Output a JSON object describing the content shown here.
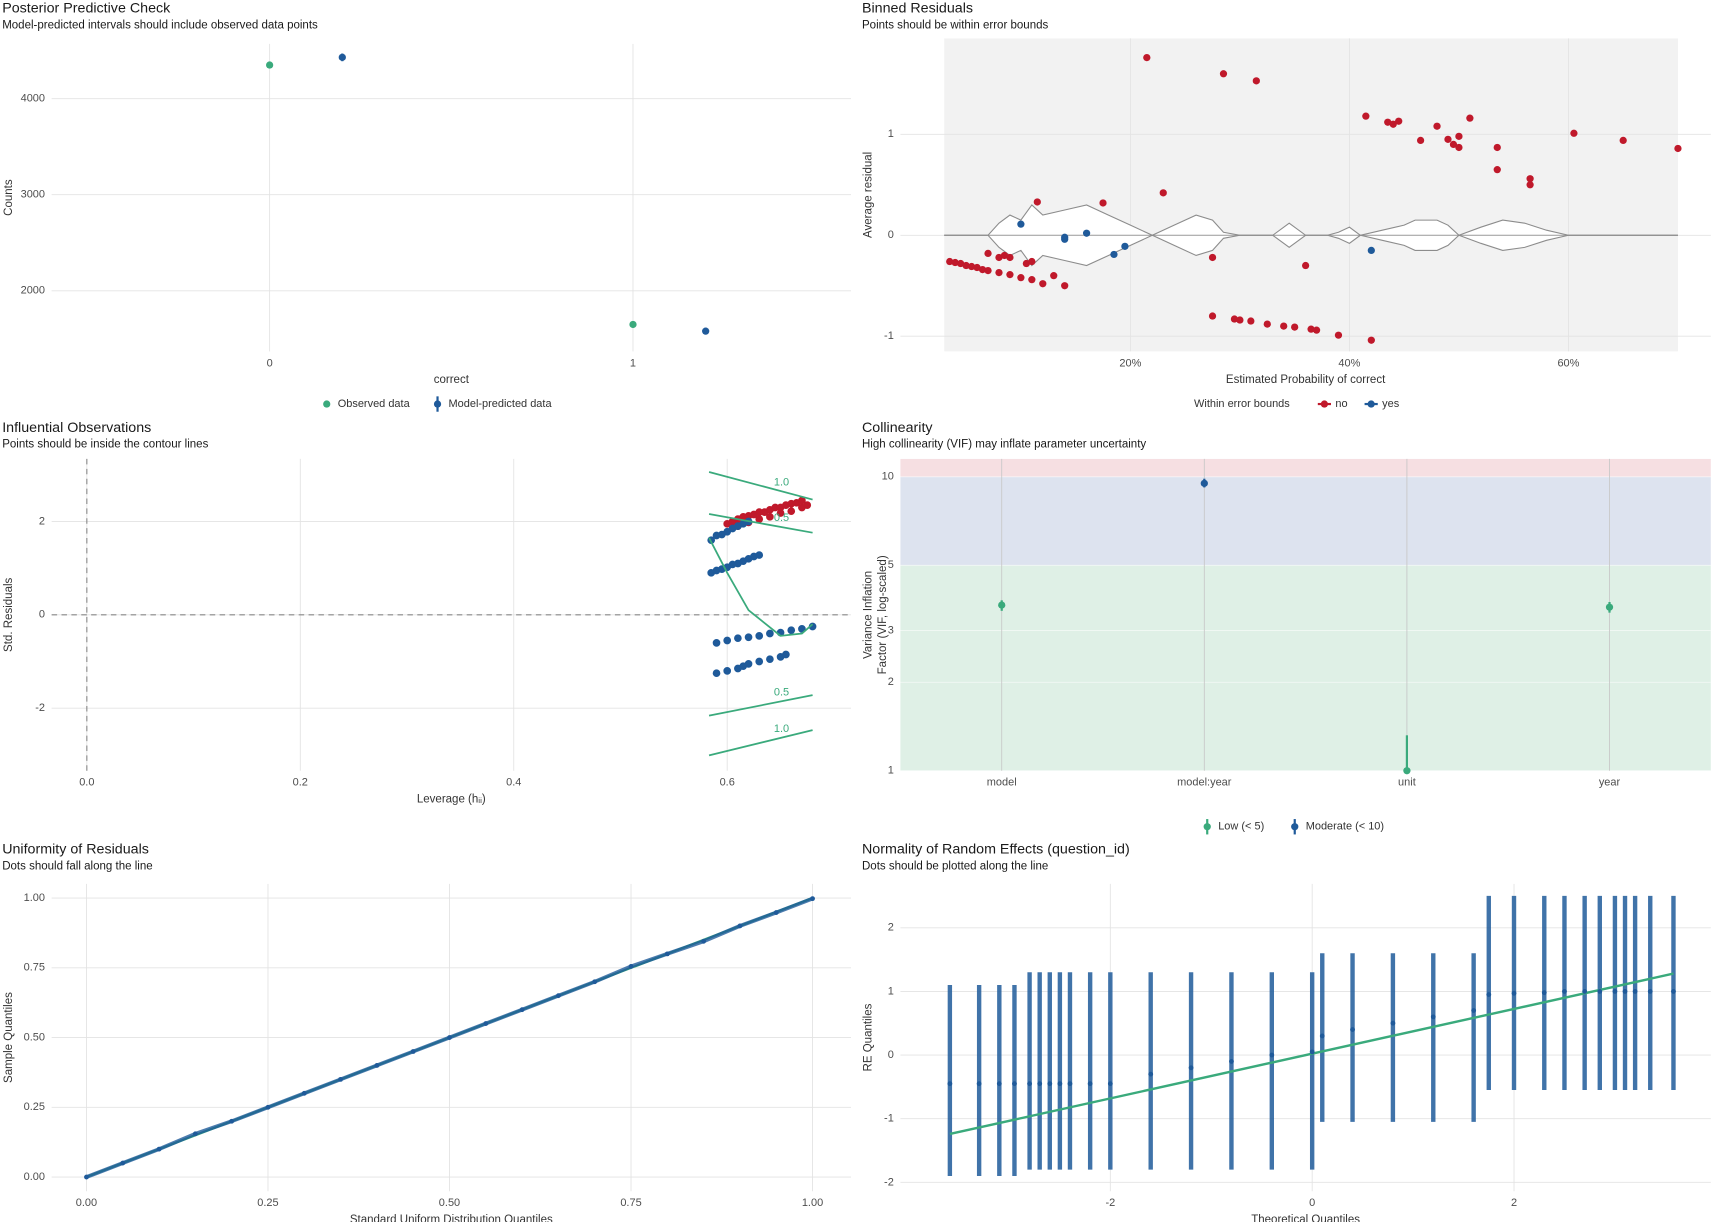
{
  "chart_data": [
    {
      "type": "pointrange",
      "title": "Posterior Predictive Check",
      "subtitle": "Model-predicted intervals should include observed data points",
      "x_label": "correct",
      "y_label": "Counts",
      "xlim": [
        -0.6,
        1.6
      ],
      "ylim": [
        1370,
        4570
      ],
      "xticks": [
        0,
        1
      ],
      "yticks": [
        2000,
        3000,
        4000
      ],
      "grid": true,
      "series": [
        {
          "name": "Observed data",
          "color": "#3aaa7c",
          "x": [
            0,
            1
          ],
          "values": [
            4350,
            1650
          ]
        },
        {
          "name": "Model-predicted data",
          "color": "#1f5a9a",
          "x": [
            0.2,
            1.2
          ],
          "values": [
            4430,
            1580
          ],
          "lower": [
            4390,
            1545
          ],
          "upper": [
            4470,
            1615
          ]
        }
      ]
    },
    {
      "type": "binned",
      "title": "Binned Residuals",
      "subtitle": "Points should be within error bounds",
      "x_label": "Estimated Probability of correct",
      "y_label": "Average residual",
      "legend_title": "Within error bounds",
      "xlim": [
        -1,
        73
      ],
      "ylim": [
        -1.15,
        1.95
      ],
      "xticks": [
        {
          "value": 20,
          "label": "20%"
        },
        {
          "value": 40,
          "label": "40%"
        },
        {
          "value": 60,
          "label": "60%"
        }
      ],
      "yticks": [
        -1,
        0,
        1
      ],
      "grid": true,
      "bounds": {
        "x": [
          3,
          6,
          7,
          8,
          9,
          10,
          11,
          12,
          14,
          16,
          18,
          20,
          22,
          24,
          26,
          27.5,
          28.5,
          30,
          33,
          34.5,
          36,
          38,
          39,
          40,
          41,
          43,
          45,
          46,
          48,
          49,
          50,
          52,
          54,
          56,
          58,
          60,
          70
        ],
        "upper": [
          0,
          0,
          0,
          0.12,
          0.2,
          0.15,
          0.3,
          0.2,
          0.25,
          0.3,
          0.2,
          0.1,
          0,
          0.1,
          0.2,
          0.15,
          0.03,
          0,
          0,
          0.12,
          0,
          0,
          0.03,
          0.08,
          0,
          0.05,
          0.1,
          0.15,
          0.15,
          0.1,
          0,
          0.08,
          0.15,
          0.12,
          0.05,
          0,
          0
        ],
        "lower": [
          0,
          0,
          0,
          -0.12,
          -0.2,
          -0.15,
          -0.3,
          -0.2,
          -0.25,
          -0.3,
          -0.2,
          -0.1,
          0,
          -0.1,
          -0.2,
          -0.15,
          -0.03,
          0,
          0,
          -0.12,
          0,
          0,
          -0.03,
          -0.08,
          0,
          -0.05,
          -0.1,
          -0.15,
          -0.15,
          -0.1,
          0,
          -0.08,
          -0.15,
          -0.12,
          -0.05,
          0,
          0
        ]
      },
      "series": [
        {
          "name": "no",
          "color": "#c0192b",
          "x": [
            3.5,
            4,
            4.5,
            5,
            5.5,
            6,
            6.5,
            7,
            8,
            9,
            10,
            11,
            12,
            13,
            14,
            7,
            8,
            8.5,
            9,
            10.5,
            11,
            11.5,
            17.5,
            21.5,
            23,
            27.5,
            28.5,
            31.5,
            36,
            27.5,
            29.5,
            30,
            31,
            32.5,
            34,
            35,
            36.5,
            37,
            39,
            42,
            41.5,
            43.5,
            44,
            44.5,
            46.5,
            48,
            49,
            49.5,
            50,
            50,
            51,
            53.5,
            53.5,
            56.5,
            56.5,
            60.5,
            65,
            70
          ],
          "values": [
            -0.26,
            -0.27,
            -0.28,
            -0.3,
            -0.31,
            -0.32,
            -0.34,
            -0.35,
            -0.37,
            -0.39,
            -0.42,
            -0.44,
            -0.48,
            -0.4,
            -0.5,
            -0.18,
            -0.22,
            -0.2,
            -0.22,
            -0.28,
            -0.26,
            0.33,
            0.32,
            1.76,
            0.42,
            -0.22,
            1.6,
            1.53,
            -0.3,
            -0.8,
            -0.83,
            -0.84,
            -0.85,
            -0.88,
            -0.9,
            -0.91,
            -0.93,
            -0.94,
            -0.99,
            -1.04,
            1.18,
            1.12,
            1.1,
            1.13,
            0.94,
            1.08,
            0.95,
            0.9,
            0.98,
            0.87,
            1.16,
            0.87,
            0.65,
            0.56,
            0.5,
            1.01,
            0.94,
            0.86
          ]
        },
        {
          "name": "yes",
          "color": "#1f5a9a",
          "x": [
            10,
            14,
            14,
            16,
            18.5,
            19.5,
            42
          ],
          "values": [
            0.11,
            -0.02,
            -0.04,
            0.02,
            -0.19,
            -0.11,
            -0.15
          ]
        }
      ]
    },
    {
      "type": "leverage",
      "title": "Influential Observations",
      "subtitle": "Points should be inside the contour lines",
      "x_label": "Leverage (hᵢᵢ)",
      "y_label": "Std. Residuals",
      "xlim": [
        -0.033,
        0.716
      ],
      "ylim": [
        -3.34,
        3.34
      ],
      "xticks": [
        {
          "value": 0,
          "label": "0.0"
        },
        0.2,
        0.4,
        0.6
      ],
      "yticks": [
        -2,
        0,
        2
      ],
      "grid": true,
      "contours": [
        {
          "label": "1.0",
          "x": [
            0.583,
            0.68
          ],
          "y": [
            3.06,
            2.47
          ]
        },
        {
          "label": "0.5",
          "x": [
            0.583,
            0.68
          ],
          "y": [
            2.16,
            1.76
          ]
        },
        {
          "label": "0.5",
          "x": [
            0.583,
            0.68
          ],
          "y": [
            -2.16,
            -1.72
          ]
        },
        {
          "label": "1.0",
          "x": [
            0.583,
            0.68
          ],
          "y": [
            -3.01,
            -2.47
          ]
        }
      ],
      "contour_color": "#3aaa7c",
      "fit_line": {
        "color": "#3aaa7c",
        "x": [
          0.583,
          0.6,
          0.62,
          0.65,
          0.67,
          0.68
        ],
        "y": [
          1.65,
          0.9,
          0.1,
          -0.45,
          -0.4,
          -0.2
        ]
      },
      "series": [
        {
          "color": "#c0192b",
          "x": [
            0.6,
            0.605,
            0.61,
            0.615,
            0.62,
            0.625,
            0.63,
            0.635,
            0.64,
            0.645,
            0.65,
            0.655,
            0.66,
            0.665,
            0.67,
            0.61,
            0.62,
            0.63,
            0.64,
            0.65,
            0.66,
            0.67,
            0.675
          ],
          "values": [
            1.95,
            2.0,
            2.05,
            2.1,
            2.12,
            2.15,
            2.2,
            2.2,
            2.25,
            2.3,
            2.3,
            2.35,
            2.38,
            2.4,
            2.45,
            1.9,
            1.98,
            2.05,
            2.1,
            2.18,
            2.22,
            2.3,
            2.35
          ]
        },
        {
          "color": "#1f5a9a",
          "x": [
            0.585,
            0.59,
            0.595,
            0.6,
            0.605,
            0.61,
            0.615,
            0.62,
            0.585,
            0.59,
            0.595,
            0.6,
            0.605,
            0.61,
            0.615,
            0.62,
            0.625,
            0.63,
            0.59,
            0.6,
            0.61,
            0.62,
            0.63,
            0.64,
            0.65,
            0.66,
            0.67,
            0.68,
            0.59,
            0.6,
            0.61,
            0.615,
            0.62,
            0.63,
            0.64,
            0.65,
            0.655
          ],
          "values": [
            1.6,
            1.7,
            1.72,
            1.78,
            1.85,
            1.9,
            1.95,
            2.0,
            0.9,
            0.95,
            0.98,
            1.02,
            1.08,
            1.1,
            1.15,
            1.2,
            1.25,
            1.28,
            -0.6,
            -0.55,
            -0.5,
            -0.48,
            -0.45,
            -0.4,
            -0.38,
            -0.33,
            -0.3,
            -0.25,
            -1.25,
            -1.2,
            -1.15,
            -1.1,
            -1.05,
            -1.0,
            -0.95,
            -0.9,
            -0.85
          ]
        }
      ]
    },
    {
      "type": "vif",
      "title": "Collinearity",
      "subtitle": "High collinearity (VIF) may inflate parameter uncertainty",
      "y_label": [
        "Variance Inflation",
        "Factor (VIF, log-scaled)"
      ],
      "log_y": true,
      "ylim": [
        1,
        11.5
      ],
      "yticks": [
        1,
        2,
        3,
        5,
        10
      ],
      "grid": true,
      "categories": [
        "model",
        "model:year",
        "unit",
        "year"
      ],
      "bands": [
        {
          "from": 1,
          "to": 5,
          "color": "#dff0e6"
        },
        {
          "from": 5,
          "to": 10,
          "color": "#dde3ef"
        },
        {
          "from": 10,
          "color": "#f6dfe2"
        }
      ],
      "series": [
        {
          "name": "Low (< 5)",
          "color": "#3aaa7c",
          "values": [
            3.66,
            null,
            1.0,
            3.6
          ],
          "lower": [
            3.5,
            null,
            1.0,
            3.45
          ],
          "upper": [
            3.8,
            null,
            1.32,
            3.75
          ]
        },
        {
          "name": "Moderate (< 10)",
          "color": "#1f5a9a",
          "values": [
            null,
            9.5,
            null,
            null
          ],
          "lower": [
            null,
            9.2,
            null,
            null
          ],
          "upper": [
            null,
            9.85,
            null,
            null
          ]
        }
      ]
    },
    {
      "type": "qq",
      "title": "Uniformity of Residuals",
      "subtitle": "Dots should fall along the line",
      "x_label": "Standard Uniform Distribution Quantiles",
      "y_label": "Sample Quantiles",
      "xlim": [
        -0.048,
        1.053
      ],
      "ylim": [
        -0.051,
        1.051
      ],
      "xticks": [
        {
          "value": 0,
          "label": "0.00"
        },
        0.25,
        {
          "value": 0.5,
          "label": "0.50"
        },
        0.75,
        {
          "value": 1,
          "label": "1.00"
        }
      ],
      "yticks": [
        {
          "value": 0,
          "label": "0.00"
        },
        0.25,
        {
          "value": 0.5,
          "label": "0.50"
        },
        0.75,
        {
          "value": 1,
          "label": "1.00"
        }
      ],
      "grid": true,
      "reference_line": {
        "color": "#3aaa7c",
        "x": [
          0,
          1
        ],
        "y": [
          0,
          1
        ]
      },
      "series": [
        {
          "color": "#1f5a9a",
          "x": [
            0,
            0.05,
            0.1,
            0.15,
            0.2,
            0.25,
            0.3,
            0.35,
            0.4,
            0.45,
            0.5,
            0.55,
            0.6,
            0.65,
            0.7,
            0.75,
            0.8,
            0.85,
            0.9,
            0.95,
            1
          ],
          "values": [
            0,
            0.05,
            0.1,
            0.155,
            0.2,
            0.25,
            0.3,
            0.35,
            0.4,
            0.45,
            0.5,
            0.55,
            0.6,
            0.65,
            0.7,
            0.755,
            0.8,
            0.845,
            0.9,
            0.948,
            0.998
          ]
        }
      ]
    },
    {
      "type": "qq",
      "title": "Normality of Random Effects (question_id)",
      "subtitle": "Dots should be plotted along the line",
      "x_label": "Theoretical Quantiles",
      "y_label": "RE Quantiles",
      "xlim": [
        -4.08,
        3.95
      ],
      "ylim": [
        -2.14,
        2.69
      ],
      "xticks": [
        -2,
        0,
        2
      ],
      "yticks": [
        -2,
        -1,
        0,
        1,
        2
      ],
      "grid": true,
      "reference_line": {
        "color": "#3aaa7c",
        "x": [
          -3.59,
          3.58
        ],
        "y": [
          -1.24,
          1.28
        ]
      },
      "series": [
        {
          "color": "#1f5a9a",
          "x": [
            -3.59,
            -3.3,
            -3.1,
            -2.95,
            -2.8,
            -2.7,
            -2.6,
            -2.5,
            -2.4,
            -2.2,
            -2.0,
            -1.6,
            -1.2,
            -0.8,
            -0.4,
            0.0,
            0.1,
            0.4,
            0.8,
            1.2,
            1.6,
            1.75,
            2.0,
            2.3,
            2.5,
            2.7,
            2.85,
            3.0,
            3.1,
            3.2,
            3.35,
            3.58
          ],
          "values": [
            -0.45,
            -0.45,
            -0.45,
            -0.45,
            -0.45,
            -0.45,
            -0.45,
            -0.45,
            -0.45,
            -0.45,
            -0.45,
            -0.3,
            -0.2,
            -0.1,
            0.0,
            0.05,
            0.3,
            0.4,
            0.5,
            0.6,
            0.7,
            0.95,
            0.97,
            0.98,
            1.0,
            1.0,
            1.0,
            1.0,
            1.0,
            1.0,
            1.0,
            1.0
          ],
          "lower": [
            -1.9,
            -1.9,
            -1.9,
            -1.9,
            -1.8,
            -1.8,
            -1.8,
            -1.8,
            -1.8,
            -1.8,
            -1.8,
            -1.8,
            -1.8,
            -1.8,
            -1.8,
            -1.8,
            -1.05,
            -1.05,
            -1.05,
            -1.05,
            -1.05,
            -0.55,
            -0.55,
            -0.55,
            -0.55,
            -0.55,
            -0.55,
            -0.55,
            -0.55,
            -0.55,
            -0.55,
            -0.55
          ],
          "upper": [
            1.1,
            1.1,
            1.1,
            1.1,
            1.3,
            1.3,
            1.3,
            1.3,
            1.3,
            1.3,
            1.3,
            1.3,
            1.3,
            1.3,
            1.3,
            1.3,
            1.6,
            1.6,
            1.6,
            1.6,
            1.6,
            2.5,
            2.5,
            2.5,
            2.5,
            2.5,
            2.5,
            2.5,
            2.5,
            2.5,
            2.5,
            2.5
          ]
        }
      ]
    }
  ]
}
